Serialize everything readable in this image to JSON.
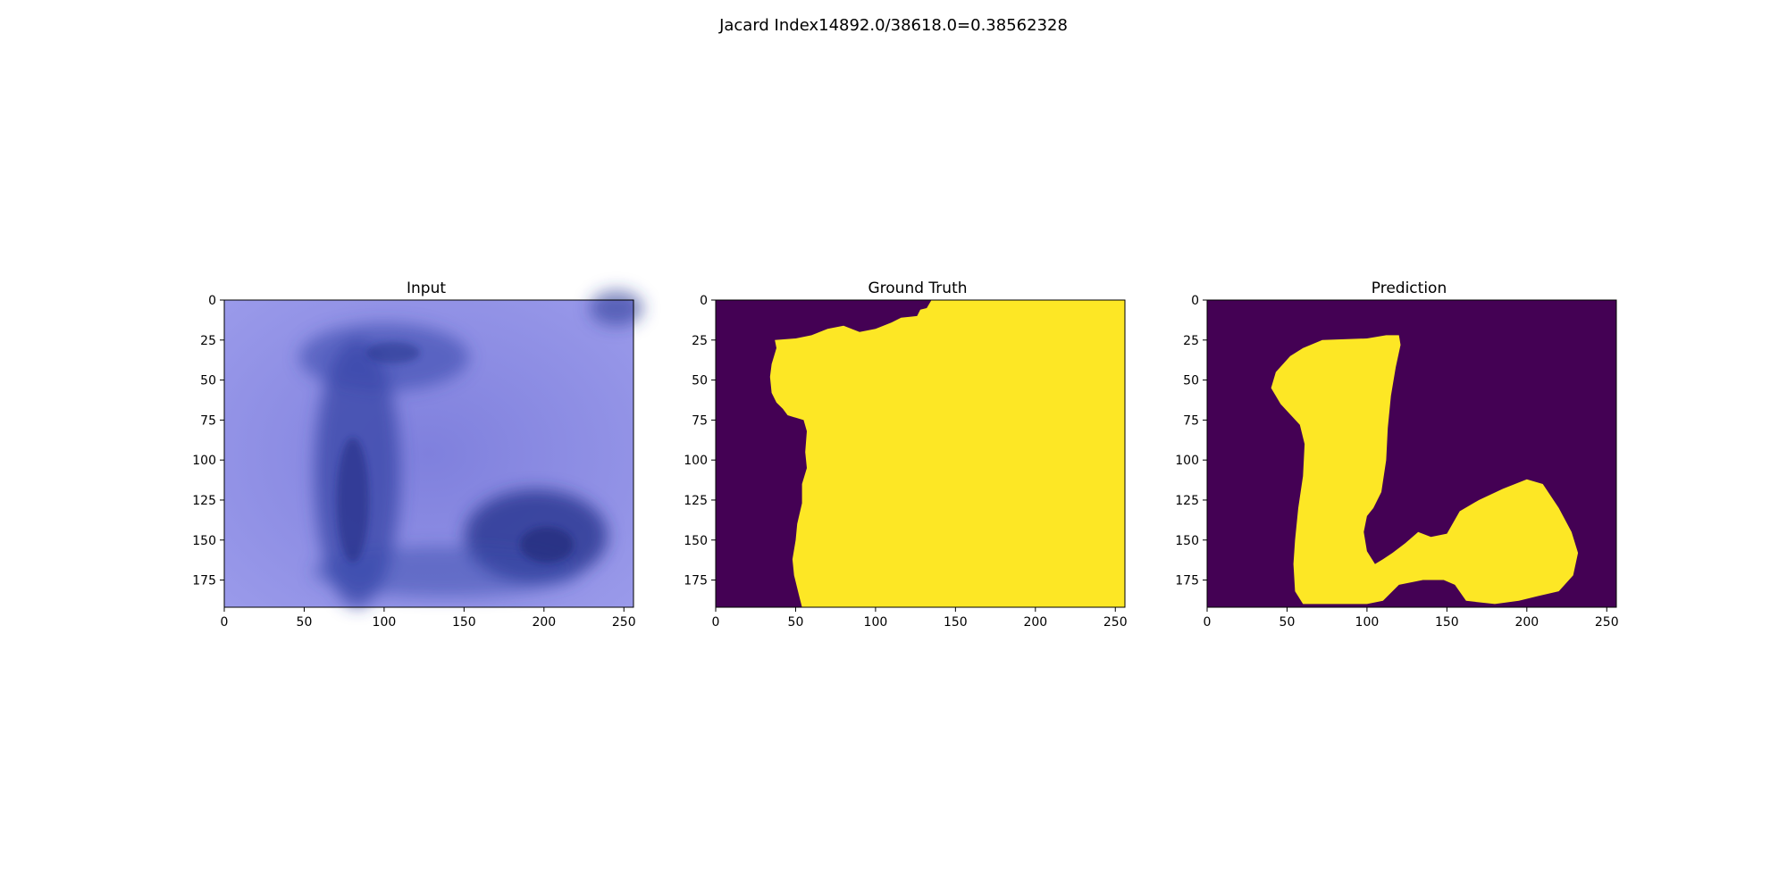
{
  "figure": {
    "suptitle": "Jacard Index14892.0/38618.0=0.38562328"
  },
  "colors": {
    "background": "#440154",
    "foreground": "#fde725",
    "input_base": "#8f8fe6",
    "input_dark": "#1f2f8a"
  },
  "chart_data": [
    {
      "type": "heatmap",
      "title": "Input",
      "image": "rgb-dermoscopy-image",
      "xlim": [
        0,
        256
      ],
      "ylim": [
        192,
        0
      ],
      "xticks": [
        0,
        50,
        100,
        150,
        200,
        250
      ],
      "yticks": [
        0,
        25,
        50,
        75,
        100,
        125,
        150,
        175
      ]
    },
    {
      "type": "heatmap",
      "title": "Ground Truth",
      "colormap": "viridis",
      "xlim": [
        0,
        256
      ],
      "ylim": [
        192,
        0
      ],
      "xticks": [
        0,
        50,
        100,
        150,
        200,
        250
      ],
      "yticks": [
        0,
        25,
        50,
        75,
        100,
        125,
        150,
        175
      ],
      "mask_outline": [
        [
          256,
          0
        ],
        [
          135,
          0
        ],
        [
          132,
          5
        ],
        [
          128,
          6
        ],
        [
          126,
          10
        ],
        [
          116,
          11
        ],
        [
          110,
          14
        ],
        [
          100,
          18
        ],
        [
          90,
          20
        ],
        [
          80,
          16
        ],
        [
          70,
          18
        ],
        [
          60,
          22
        ],
        [
          50,
          24
        ],
        [
          37,
          25
        ],
        [
          38,
          30
        ],
        [
          35,
          40
        ],
        [
          34,
          48
        ],
        [
          35,
          58
        ],
        [
          38,
          64
        ],
        [
          42,
          68
        ],
        [
          45,
          72
        ],
        [
          55,
          75
        ],
        [
          57,
          82
        ],
        [
          56,
          95
        ],
        [
          57,
          105
        ],
        [
          54,
          115
        ],
        [
          54,
          127
        ],
        [
          51,
          140
        ],
        [
          50,
          150
        ],
        [
          48,
          162
        ],
        [
          49,
          172
        ],
        [
          52,
          184
        ],
        [
          54,
          192
        ],
        [
          256,
          192
        ]
      ]
    },
    {
      "type": "heatmap",
      "title": "Prediction",
      "colormap": "viridis",
      "xlim": [
        0,
        256
      ],
      "ylim": [
        192,
        0
      ],
      "xticks": [
        0,
        50,
        100,
        150,
        200,
        250
      ],
      "yticks": [
        0,
        25,
        50,
        75,
        100,
        125,
        150,
        175
      ],
      "mask_outline": [
        [
          72,
          25
        ],
        [
          100,
          24
        ],
        [
          112,
          22
        ],
        [
          120,
          22
        ],
        [
          121,
          28
        ],
        [
          118,
          42
        ],
        [
          115,
          60
        ],
        [
          113,
          80
        ],
        [
          112,
          100
        ],
        [
          109,
          120
        ],
        [
          104,
          130
        ],
        [
          100,
          135
        ],
        [
          98,
          145
        ],
        [
          100,
          157
        ],
        [
          105,
          165
        ],
        [
          110,
          162
        ],
        [
          116,
          158
        ],
        [
          124,
          152
        ],
        [
          132,
          145
        ],
        [
          140,
          148
        ],
        [
          150,
          146
        ],
        [
          158,
          132
        ],
        [
          170,
          125
        ],
        [
          185,
          118
        ],
        [
          200,
          112
        ],
        [
          210,
          115
        ],
        [
          220,
          130
        ],
        [
          228,
          145
        ],
        [
          232,
          158
        ],
        [
          229,
          172
        ],
        [
          220,
          182
        ],
        [
          207,
          185
        ],
        [
          195,
          188
        ],
        [
          180,
          190
        ],
        [
          162,
          188
        ],
        [
          155,
          178
        ],
        [
          148,
          175
        ],
        [
          135,
          175
        ],
        [
          120,
          178
        ],
        [
          110,
          188
        ],
        [
          100,
          190
        ],
        [
          80,
          190
        ],
        [
          60,
          190
        ],
        [
          55,
          182
        ],
        [
          54,
          165
        ],
        [
          55,
          150
        ],
        [
          57,
          130
        ],
        [
          60,
          110
        ],
        [
          61,
          90
        ],
        [
          58,
          78
        ],
        [
          46,
          65
        ],
        [
          40,
          55
        ],
        [
          43,
          45
        ],
        [
          52,
          35
        ],
        [
          60,
          30
        ]
      ]
    }
  ]
}
